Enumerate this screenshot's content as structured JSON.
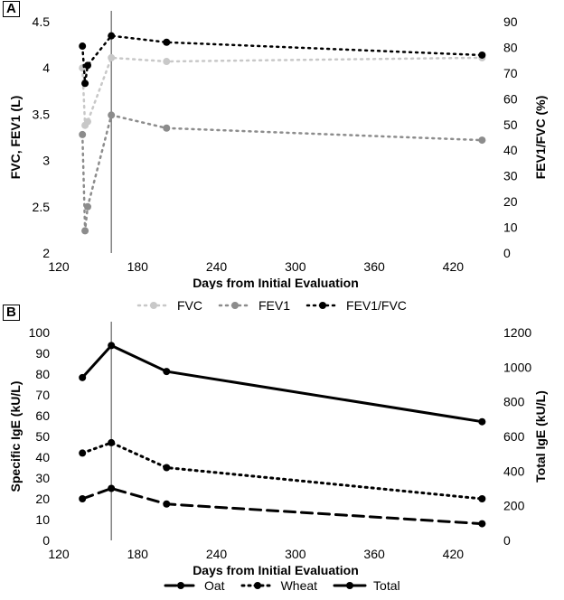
{
  "panels": {
    "a": {
      "label": "A"
    },
    "b": {
      "label": "B"
    }
  },
  "chart_data": [
    {
      "type": "line",
      "panel": "A",
      "xlabel": "Days from Initial Evaluation",
      "ylabel": "FVC, FEV1 (L)",
      "y2label": "FEV1/FVC (%)",
      "xlim": [
        120,
        450
      ],
      "ylim": [
        2,
        4.5
      ],
      "y2lim": [
        0,
        90
      ],
      "x_ticks": [
        120,
        180,
        240,
        300,
        360,
        420
      ],
      "y_ticks": [
        2,
        2.5,
        3,
        3.5,
        4,
        4.5
      ],
      "y2_ticks": [
        0,
        10,
        20,
        30,
        40,
        50,
        60,
        70,
        80,
        90
      ],
      "reference_line_x": 160,
      "legend_position": "bottom",
      "series": [
        {
          "name": "FVC",
          "axis": "left",
          "color": "#c8c8c8",
          "x": [
            138,
            140,
            142,
            160,
            202,
            442
          ],
          "y": [
            4.0,
            3.38,
            3.42,
            4.11,
            4.07,
            4.11
          ]
        },
        {
          "name": "FEV1",
          "axis": "left",
          "color": "#8c8c8c",
          "x": [
            138,
            140,
            142,
            160,
            202,
            442
          ],
          "y": [
            3.28,
            2.24,
            2.5,
            3.49,
            3.35,
            3.22
          ]
        },
        {
          "name": "FEV1/FVC",
          "axis": "right",
          "color": "#000000",
          "x": [
            138,
            140,
            142,
            160,
            202,
            442
          ],
          "y": [
            80.5,
            66,
            73,
            84.5,
            82,
            77
          ]
        }
      ]
    },
    {
      "type": "line",
      "panel": "B",
      "xlabel": "Days from Initial Evaluation",
      "ylabel": "Specific IgE (kU/L)",
      "y2label": "Total IgE (kU/L)",
      "xlim": [
        120,
        450
      ],
      "ylim": [
        0,
        100
      ],
      "y2lim": [
        0,
        1200
      ],
      "x_ticks": [
        120,
        180,
        240,
        300,
        360,
        420
      ],
      "y_ticks": [
        0,
        10,
        20,
        30,
        40,
        50,
        60,
        70,
        80,
        90,
        100
      ],
      "y2_ticks": [
        0,
        200,
        400,
        600,
        800,
        1000,
        1200
      ],
      "reference_line_x": 160,
      "legend_position": "bottom",
      "series": [
        {
          "name": "Oat",
          "axis": "left",
          "color": "#000000",
          "style": "dashed",
          "x": [
            138,
            160,
            202,
            442
          ],
          "y": [
            20,
            25,
            17.5,
            8
          ]
        },
        {
          "name": "Wheat",
          "axis": "left",
          "color": "#000000",
          "style": "dotted",
          "x": [
            138,
            160,
            202,
            442
          ],
          "y": [
            42,
            47,
            35,
            20
          ]
        },
        {
          "name": "Total",
          "axis": "right",
          "color": "#000000",
          "style": "solid",
          "x": [
            138,
            160,
            202,
            442
          ],
          "y": [
            940,
            1125,
            975,
            685
          ]
        }
      ]
    }
  ]
}
